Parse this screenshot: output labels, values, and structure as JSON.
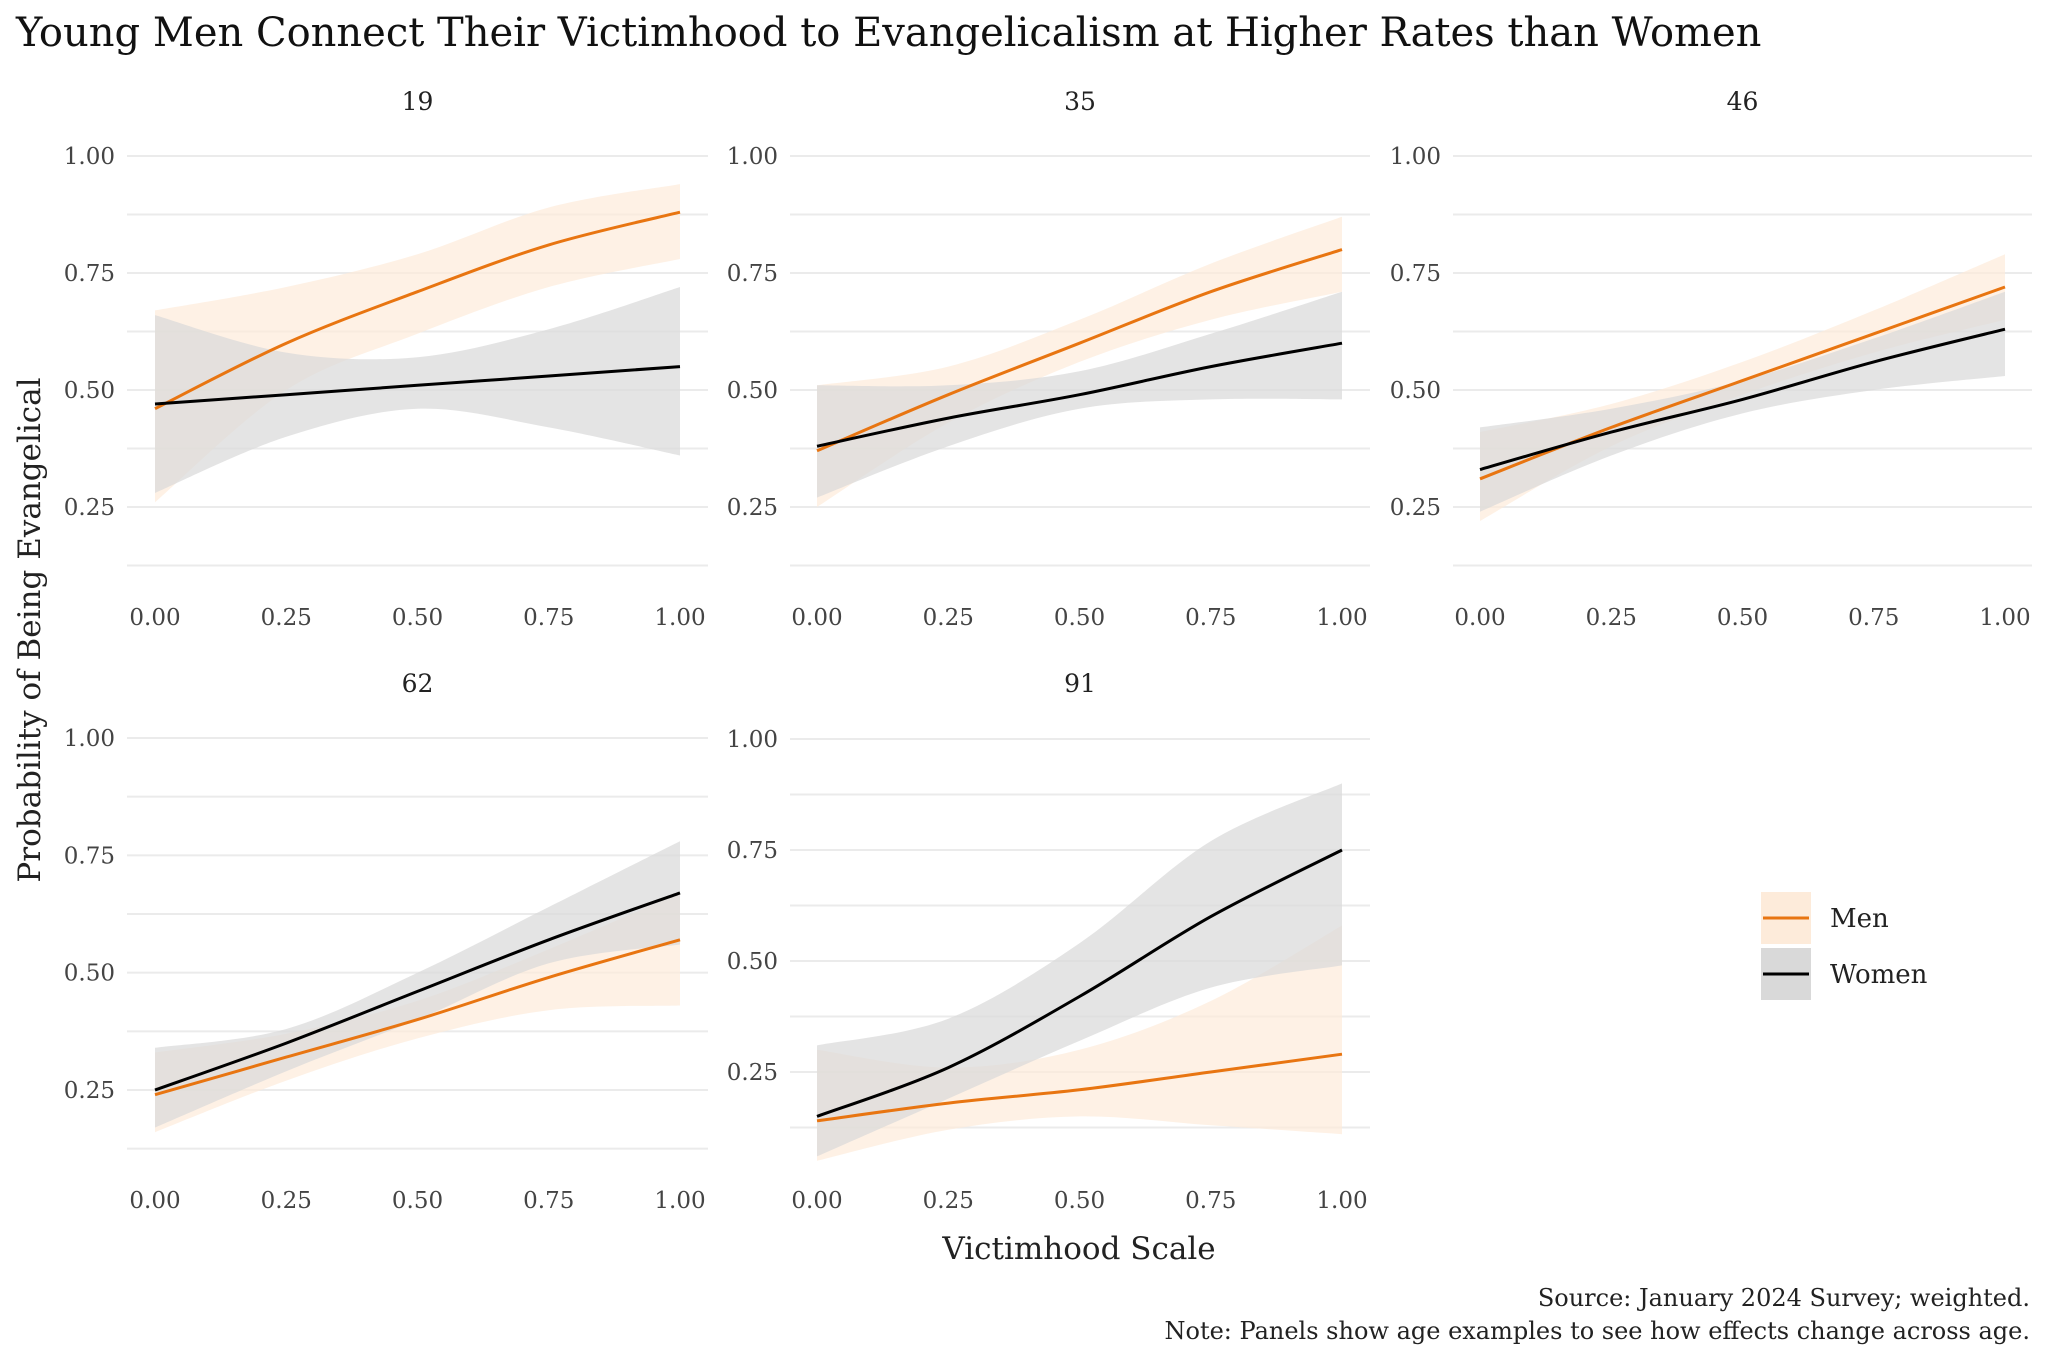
{
  "chart_data": {
    "type": "line",
    "title": "Young Men Connect Their Victimhood to Evangelicalism at Higher Rates than Women",
    "xlabel": "Victimhood Scale",
    "ylabel": "Probability of Being Evangelical",
    "caption": [
      "Source: January 2024 Survey; weighted.",
      "Note: Panels show age examples to see how effects change across age."
    ],
    "x_ticks": [
      "0.00",
      "0.25",
      "0.50",
      "0.75",
      "1.00"
    ],
    "y_ticks": [
      "0.25",
      "0.50",
      "0.75",
      "1.00"
    ],
    "xlim": [
      0,
      1
    ],
    "legend": {
      "position": "right",
      "entries": [
        {
          "name": "Men",
          "color": "#E87511",
          "fill": "#FDEBDA"
        },
        {
          "name": "Women",
          "color": "#000000",
          "fill": "#D9D9D9"
        }
      ]
    },
    "panels": [
      {
        "label": "19",
        "ylim": [
          0.1,
          1.0
        ],
        "x": [
          0,
          0.25,
          0.5,
          0.75,
          1.0
        ],
        "series": [
          {
            "name": "Men",
            "y": [
              0.46,
              0.6,
              0.71,
              0.81,
              0.88
            ],
            "lower": [
              0.26,
              0.5,
              0.62,
              0.72,
              0.78
            ],
            "upper": [
              0.67,
              0.72,
              0.79,
              0.89,
              0.94
            ]
          },
          {
            "name": "Women",
            "y": [
              0.47,
              0.49,
              0.51,
              0.53,
              0.55
            ],
            "lower": [
              0.28,
              0.4,
              0.46,
              0.42,
              0.36
            ],
            "upper": [
              0.66,
              0.58,
              0.57,
              0.63,
              0.72
            ]
          }
        ]
      },
      {
        "label": "35",
        "ylim": [
          0.1,
          1.0
        ],
        "x": [
          0,
          0.25,
          0.5,
          0.75,
          1.0
        ],
        "series": [
          {
            "name": "Men",
            "y": [
              0.37,
              0.49,
              0.6,
              0.71,
              0.8
            ],
            "lower": [
              0.25,
              0.43,
              0.56,
              0.65,
              0.71
            ],
            "upper": [
              0.51,
              0.55,
              0.65,
              0.77,
              0.87
            ]
          },
          {
            "name": "Women",
            "y": [
              0.38,
              0.44,
              0.49,
              0.55,
              0.6
            ],
            "lower": [
              0.27,
              0.38,
              0.46,
              0.48,
              0.48
            ],
            "upper": [
              0.51,
              0.51,
              0.54,
              0.62,
              0.71
            ]
          }
        ]
      },
      {
        "label": "46",
        "ylim": [
          0.1,
          1.0
        ],
        "x": [
          0,
          0.25,
          0.5,
          0.75,
          1.0
        ],
        "series": [
          {
            "name": "Men",
            "y": [
              0.31,
              0.42,
              0.52,
              0.62,
              0.72
            ],
            "lower": [
              0.22,
              0.38,
              0.49,
              0.58,
              0.65
            ],
            "upper": [
              0.41,
              0.47,
              0.56,
              0.67,
              0.79
            ]
          },
          {
            "name": "Women",
            "y": [
              0.33,
              0.41,
              0.48,
              0.56,
              0.63
            ],
            "lower": [
              0.24,
              0.36,
              0.45,
              0.5,
              0.53
            ],
            "upper": [
              0.42,
              0.46,
              0.52,
              0.61,
              0.71
            ]
          }
        ]
      },
      {
        "label": "62",
        "ylim": [
          0.1,
          1.0
        ],
        "x": [
          0,
          0.25,
          0.5,
          0.75,
          1.0
        ],
        "series": [
          {
            "name": "Men",
            "y": [
              0.24,
              0.32,
              0.4,
              0.49,
              0.57
            ],
            "lower": [
              0.16,
              0.27,
              0.36,
              0.42,
              0.43
            ],
            "upper": [
              0.33,
              0.37,
              0.44,
              0.55,
              0.67
            ]
          },
          {
            "name": "Women",
            "y": [
              0.25,
              0.35,
              0.46,
              0.57,
              0.67
            ],
            "lower": [
              0.17,
              0.29,
              0.4,
              0.52,
              0.56
            ],
            "upper": [
              0.34,
              0.38,
              0.5,
              0.64,
              0.78
            ]
          }
        ]
      },
      {
        "label": "91",
        "ylim": [
          0.05,
          0.91
        ],
        "x": [
          0,
          0.25,
          0.5,
          0.75,
          1.0
        ],
        "series": [
          {
            "name": "Men",
            "y": [
              0.14,
              0.18,
              0.21,
              0.25,
              0.29
            ],
            "lower": [
              0.05,
              0.12,
              0.15,
              0.13,
              0.11
            ],
            "upper": [
              0.3,
              0.26,
              0.3,
              0.41,
              0.58
            ]
          },
          {
            "name": "Women",
            "y": [
              0.15,
              0.26,
              0.42,
              0.6,
              0.75
            ],
            "lower": [
              0.06,
              0.19,
              0.32,
              0.44,
              0.49
            ],
            "upper": [
              0.31,
              0.37,
              0.54,
              0.77,
              0.9
            ]
          }
        ]
      }
    ]
  }
}
